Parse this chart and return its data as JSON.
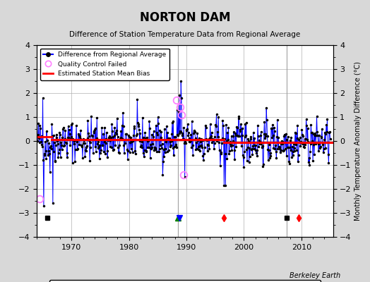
{
  "title": "NORTON DAM",
  "subtitle": "Difference of Station Temperature Data from Regional Average",
  "ylabel": "Monthly Temperature Anomaly Difference (°C)",
  "xlabel_years": [
    1970,
    1980,
    1990,
    2000,
    2010
  ],
  "ylim": [
    -4,
    4
  ],
  "xlim": [
    1964.0,
    2015.5
  ],
  "background_color": "#d8d8d8",
  "plot_bg_color": "#ffffff",
  "grid_color": "#b0b0b0",
  "line_color": "#0000ff",
  "bias_color": "#ff0000",
  "marker_color": "#000000",
  "qc_color": "#ff80ff",
  "watermark": "Berkeley Earth",
  "vertical_lines": [
    1988.5,
    2007.5
  ],
  "vertical_line_color": "#a0a0a0",
  "station_moves": [
    1996.5,
    2009.5
  ],
  "record_gaps": [
    1988.5
  ],
  "obs_changes": [
    1988.75
  ],
  "empirical_breaks": [
    1965.75,
    2007.5
  ],
  "bias_segments": [
    {
      "x": [
        1964.0,
        1966.5
      ],
      "y": [
        0.18,
        0.18
      ]
    },
    {
      "x": [
        1966.5,
        1988.5
      ],
      "y": [
        0.05,
        0.05
      ]
    },
    {
      "x": [
        1988.5,
        1996.5
      ],
      "y": [
        0.05,
        0.05
      ]
    },
    {
      "x": [
        1996.5,
        2007.5
      ],
      "y": [
        -0.05,
        -0.05
      ]
    },
    {
      "x": [
        2007.5,
        2015.5
      ],
      "y": [
        -0.05,
        -0.05
      ]
    }
  ],
  "qc_points": [
    {
      "t": 1964.5,
      "v": -2.4
    },
    {
      "t": 1988.3,
      "v": 1.7
    },
    {
      "t": 1988.85,
      "v": 1.4
    },
    {
      "t": 1989.1,
      "v": 1.1
    },
    {
      "t": 1989.55,
      "v": -1.4
    }
  ],
  "seed": 42,
  "n_points": 612,
  "start_year": 1964.0,
  "end_year": 2015.0
}
